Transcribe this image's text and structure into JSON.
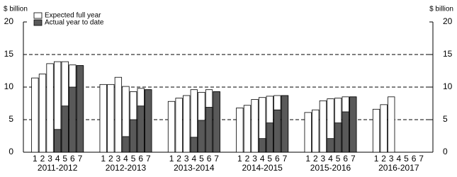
{
  "chart_data": {
    "type": "grouped-overlap-bar",
    "y_label_left": "$ billion",
    "y_label_right": "$ billion",
    "groups": [
      "2011-2012",
      "2012-2013",
      "2013-2014",
      "2014-2015",
      "2015-2016",
      "2016-2017"
    ],
    "positions": [
      "1",
      "2",
      "3",
      "4",
      "5",
      "6",
      "7"
    ],
    "series": [
      {
        "name": "Expected full year",
        "color": "#ffffff",
        "values": [
          [
            11.4,
            12.0,
            13.6,
            13.9,
            13.9,
            13.4,
            13.3
          ],
          [
            10.4,
            10.4,
            11.5,
            10.1,
            9.3,
            9.8,
            9.6
          ],
          [
            7.8,
            8.3,
            8.7,
            9.6,
            9.2,
            9.6,
            9.3
          ],
          [
            6.8,
            7.2,
            8.1,
            8.4,
            8.6,
            8.7,
            8.7
          ],
          [
            6.1,
            6.5,
            7.9,
            8.2,
            8.3,
            8.5,
            8.5
          ],
          [
            6.6,
            7.3,
            8.5,
            null,
            null,
            null,
            null
          ]
        ]
      },
      {
        "name": "Actual year to date",
        "color": "#595959",
        "values": [
          [
            null,
            null,
            null,
            3.5,
            7.1,
            10.0,
            13.3
          ],
          [
            null,
            null,
            null,
            2.4,
            5.0,
            7.1,
            9.6
          ],
          [
            null,
            null,
            null,
            2.3,
            4.9,
            6.9,
            9.3
          ],
          [
            null,
            null,
            null,
            2.1,
            4.5,
            6.5,
            8.7
          ],
          [
            null,
            null,
            null,
            2.1,
            4.5,
            6.2,
            8.5
          ],
          [
            null,
            null,
            null,
            null,
            null,
            null,
            null
          ]
        ]
      }
    ],
    "ylim": [
      0,
      20
    ],
    "yticks": [
      0,
      5,
      10,
      15,
      20
    ],
    "grid": true
  }
}
